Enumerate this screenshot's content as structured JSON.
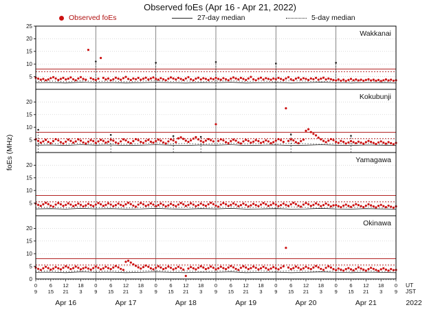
{
  "chart_data": {
    "type": "scatter",
    "title": "Observed foEs (Apr 16 - Apr 21, 2022)",
    "ylabel": "foEs (MHz)",
    "ylim": [
      0,
      25
    ],
    "yticks": [
      0,
      5,
      10,
      15,
      20,
      25
    ],
    "x_hours": [
      0,
      144
    ],
    "xtick_step_hours": 6,
    "observed_step_hours": 1,
    "median_step_hours": 6,
    "grid": true,
    "legend_position": "top",
    "legend": [
      {
        "label": "Observed foEs",
        "type": "dot",
        "color": "#cc1111"
      },
      {
        "label": "27-day median",
        "type": "solid-line",
        "color": "#222222"
      },
      {
        "label": "5-day median",
        "type": "dotted-line",
        "color": "#222222"
      }
    ],
    "x_days": [
      "Apr 16",
      "Apr 17",
      "Apr 18",
      "Apr 19",
      "Apr 20",
      "Apr 21"
    ],
    "year_label": "2022",
    "time_axis_labels": {
      "ut": "UT",
      "jst": "JST"
    },
    "ut_tick_start": 0,
    "jst_tick_start": 9,
    "colors": {
      "observed": "#cc1111",
      "median": "#1a1a1a",
      "threshold": "#b22222",
      "minor_grid": "#c4c4c4",
      "day_line": "#666666",
      "frame": "#000000"
    },
    "panels": [
      {
        "station": "Wakkanai",
        "red_solid": 8,
        "red_dotted": 7,
        "spikes": [
          [
            24,
            11.0
          ],
          [
            48,
            10.5
          ],
          [
            72,
            10.8
          ],
          [
            96,
            10.2
          ],
          [
            120,
            10.5
          ]
        ],
        "observed_y": [
          4.6,
          4.2,
          3.8,
          4.1,
          3.6,
          3.9,
          4.4,
          4.8,
          4.3,
          3.7,
          4.1,
          4.5,
          3.9,
          4.2,
          4.7,
          4.0,
          3.6,
          4.3,
          4.8,
          4.1,
          3.8,
          15.6,
          4.4,
          4.0,
          3.7,
          4.2,
          12.4,
          4.5,
          3.9,
          4.3,
          3.6,
          4.0,
          4.6,
          4.2,
          3.8,
          4.4,
          4.9,
          4.1,
          3.7,
          4.3,
          4.0,
          4.5,
          3.8,
          4.2,
          4.6,
          3.9,
          4.3,
          4.7,
          4.1,
          3.8,
          4.4,
          4.0,
          3.6,
          4.2,
          4.7,
          4.3,
          3.9,
          4.5,
          4.1,
          3.7,
          4.3,
          4.8,
          4.0,
          3.6,
          4.2,
          4.6,
          3.9,
          4.4,
          4.1,
          3.7,
          4.3,
          4.0,
          4.5,
          4.1,
          3.8,
          4.4,
          4.0,
          3.6,
          4.2,
          4.7,
          4.3,
          3.9,
          4.5,
          4.1,
          3.7,
          4.3,
          4.9,
          4.0,
          3.6,
          4.2,
          4.6,
          3.9,
          4.4,
          4.1,
          3.8,
          4.3,
          4.0,
          4.5,
          4.1,
          3.7,
          4.3,
          4.8,
          4.0,
          3.6,
          4.2,
          4.6,
          3.9,
          4.4,
          4.1,
          3.7,
          4.3,
          4.0,
          4.5,
          3.8,
          4.2,
          4.6,
          3.9,
          4.3,
          4.0,
          3.7,
          3.5,
          3.9,
          3.4,
          3.8,
          3.3,
          3.7,
          4.1,
          3.6,
          3.9,
          3.5,
          3.8,
          3.4,
          3.7,
          4.0,
          3.5,
          3.8,
          3.4,
          3.7,
          3.3,
          3.6,
          3.9,
          3.5,
          3.8,
          3.4,
          3.6
        ],
        "median27_y": [
          2.6,
          2.7,
          2.5,
          2.8,
          2.6,
          2.7,
          2.5,
          2.6,
          2.8,
          2.6,
          2.5,
          2.7,
          2.6,
          2.8,
          2.5,
          2.6,
          2.7,
          2.5,
          2.6,
          2.8,
          2.6,
          2.5,
          2.7,
          2.6,
          2.5
        ],
        "median5_y": [
          3.1,
          3.3,
          3.0,
          3.4,
          3.1,
          3.3,
          3.0,
          3.2,
          3.5,
          3.1,
          3.3,
          3.0,
          3.2,
          3.4,
          3.1,
          3.3,
          3.0,
          3.4,
          3.2,
          3.0,
          3.3,
          3.1,
          3.4,
          3.0,
          3.2
        ]
      },
      {
        "station": "Kokubunji",
        "red_solid": 8,
        "red_dotted": 5.5,
        "spikes": [
          [
            1,
            9.0
          ],
          [
            30,
            7.0
          ],
          [
            55,
            6.5
          ],
          [
            66,
            6.2
          ],
          [
            102,
            7.2
          ],
          [
            126,
            6.6
          ]
        ],
        "observed_y": [
          5.2,
          4.6,
          3.9,
          4.4,
          5.0,
          4.2,
          3.7,
          4.5,
          5.3,
          4.8,
          4.1,
          3.6,
          4.3,
          5.1,
          4.6,
          3.9,
          4.4,
          5.2,
          4.7,
          4.0,
          3.6,
          4.3,
          4.9,
          4.5,
          3.8,
          4.4,
          5.0,
          4.6,
          3.9,
          4.3,
          5.1,
          4.7,
          4.0,
          3.6,
          4.4,
          5.2,
          4.8,
          4.1,
          3.7,
          4.5,
          5.3,
          4.9,
          4.2,
          3.8,
          4.6,
          5.0,
          4.3,
          3.9,
          4.5,
          5.1,
          4.7,
          4.0,
          3.6,
          4.4,
          5.2,
          4.8,
          4.1,
          5.6,
          6.0,
          5.4,
          4.7,
          4.2,
          4.8,
          5.5,
          6.1,
          5.2,
          4.6,
          4.1,
          4.7,
          5.3,
          4.9,
          4.4,
          11.2,
          4.6,
          5.2,
          4.8,
          4.1,
          3.7,
          4.5,
          5.1,
          4.7,
          4.0,
          3.6,
          4.4,
          5.0,
          4.6,
          3.9,
          4.3,
          4.9,
          4.5,
          3.8,
          4.2,
          4.8,
          4.4,
          3.7,
          4.1,
          4.7,
          5.3,
          4.9,
          4.2,
          17.5,
          4.6,
          5.2,
          4.8,
          4.1,
          3.7,
          4.5,
          5.1,
          8.6,
          9.2,
          8.1,
          7.4,
          6.8,
          5.9,
          5.2,
          4.6,
          4.1,
          4.7,
          5.3,
          4.9,
          4.2,
          3.8,
          4.6,
          4.2,
          3.6,
          4.0,
          4.5,
          4.1,
          3.7,
          4.3,
          3.9,
          3.5,
          4.1,
          4.6,
          4.2,
          3.8,
          3.4,
          4.0,
          4.4,
          3.9,
          3.5,
          4.1,
          3.7,
          3.3,
          3.8
        ],
        "median27_y": [
          2.9,
          3.0,
          2.8,
          3.1,
          2.9,
          3.0,
          2.8,
          2.9,
          3.1,
          2.9,
          2.8,
          3.0,
          2.9,
          3.1,
          2.8,
          2.9,
          3.0,
          2.8,
          2.9,
          3.1,
          2.9,
          2.8,
          3.0,
          2.9,
          2.8
        ],
        "median5_y": [
          3.4,
          3.6,
          3.3,
          3.7,
          3.4,
          3.6,
          3.3,
          3.5,
          3.8,
          3.4,
          3.6,
          3.3,
          3.5,
          3.7,
          3.4,
          3.6,
          3.3,
          3.7,
          3.5,
          3.3,
          3.6,
          3.4,
          3.7,
          3.3,
          3.5
        ]
      },
      {
        "station": "Yamagawa",
        "red_solid": 8,
        "red_dotted": 5.5,
        "spikes": [],
        "observed_y": [
          4.8,
          4.3,
          3.9,
          4.5,
          5.1,
          4.6,
          4.0,
          3.6,
          4.4,
          5.0,
          4.5,
          3.9,
          4.3,
          4.9,
          4.4,
          3.8,
          4.2,
          4.8,
          4.3,
          3.7,
          4.1,
          4.7,
          4.2,
          3.8,
          4.4,
          5.0,
          4.5,
          3.9,
          4.3,
          4.9,
          4.4,
          3.8,
          4.2,
          4.8,
          4.3,
          3.9,
          4.5,
          5.1,
          4.6,
          4.0,
          3.6,
          4.4,
          5.0,
          4.5,
          3.9,
          4.3,
          4.9,
          4.4,
          3.8,
          4.2,
          4.8,
          4.3,
          3.7,
          4.1,
          4.7,
          4.2,
          3.8,
          4.4,
          5.0,
          4.5,
          3.9,
          4.3,
          4.9,
          4.4,
          3.8,
          4.2,
          4.8,
          4.3,
          3.9,
          4.5,
          5.1,
          4.6,
          4.0,
          3.6,
          4.4,
          5.0,
          4.5,
          3.9,
          4.3,
          4.9,
          4.4,
          3.8,
          4.2,
          4.8,
          4.3,
          3.7,
          4.1,
          4.7,
          4.2,
          3.8,
          4.4,
          5.0,
          4.5,
          3.9,
          4.3,
          4.9,
          4.4,
          3.8,
          4.2,
          4.8,
          4.3,
          3.9,
          4.5,
          5.1,
          4.6,
          4.0,
          3.6,
          4.4,
          5.0,
          4.5,
          3.9,
          4.3,
          4.9,
          4.4,
          3.8,
          4.2,
          4.8,
          4.3,
          3.7,
          4.1,
          4.2,
          3.8,
          3.4,
          4.0,
          4.4,
          3.9,
          3.5,
          4.1,
          4.6,
          4.2,
          3.8,
          3.4,
          4.0,
          4.5,
          4.1,
          3.7,
          3.3,
          3.9,
          4.3,
          3.8,
          3.4,
          4.0,
          3.6,
          3.2,
          3.7
        ],
        "median27_y": [
          2.7,
          2.8,
          2.6,
          2.9,
          2.7,
          2.8,
          2.6,
          2.7,
          2.9,
          2.7,
          2.6,
          2.8,
          2.7,
          2.9,
          2.6,
          2.7,
          2.8,
          2.6,
          2.7,
          2.9,
          2.7,
          2.6,
          2.8,
          2.7,
          2.6
        ],
        "median5_y": [
          3.2,
          3.4,
          3.1,
          3.5,
          3.2,
          3.4,
          3.1,
          3.3,
          3.6,
          3.2,
          3.4,
          3.1,
          3.3,
          3.5,
          3.2,
          3.4,
          3.1,
          3.5,
          3.3,
          3.1,
          3.4,
          3.2,
          3.5,
          3.1,
          3.3
        ]
      },
      {
        "station": "Okinawa",
        "red_solid": 8,
        "red_dotted": 5.5,
        "spikes": [],
        "observed_y": [
          4.5,
          4.0,
          3.6,
          4.2,
          4.8,
          4.3,
          3.7,
          4.1,
          4.7,
          4.2,
          3.8,
          4.4,
          5.0,
          4.5,
          3.9,
          4.3,
          4.9,
          4.4,
          3.8,
          4.2,
          4.6,
          4.1,
          3.7,
          4.3,
          4.9,
          4.4,
          3.8,
          4.2,
          4.8,
          4.3,
          3.9,
          4.5,
          5.1,
          4.6,
          4.0,
          3.6,
          6.8,
          7.2,
          6.5,
          5.8,
          5.2,
          4.6,
          4.1,
          4.7,
          5.3,
          4.8,
          4.2,
          3.8,
          4.4,
          5.0,
          4.5,
          3.9,
          4.3,
          4.9,
          4.4,
          3.8,
          4.2,
          4.8,
          4.3,
          3.7,
          1.2,
          4.1,
          4.7,
          4.2,
          3.8,
          4.4,
          5.0,
          4.5,
          3.9,
          4.3,
          4.9,
          4.4,
          3.8,
          4.2,
          4.8,
          4.3,
          3.9,
          4.5,
          5.1,
          4.6,
          4.0,
          3.6,
          4.4,
          5.0,
          4.5,
          3.9,
          4.3,
          4.9,
          4.4,
          3.8,
          4.2,
          4.8,
          4.3,
          3.7,
          4.1,
          4.7,
          4.2,
          3.8,
          4.4,
          5.0,
          12.3,
          4.5,
          3.9,
          4.3,
          4.9,
          4.4,
          3.8,
          4.2,
          4.8,
          4.3,
          3.9,
          4.5,
          5.1,
          4.6,
          4.0,
          3.6,
          4.4,
          5.0,
          4.5,
          3.9,
          3.5,
          4.1,
          3.7,
          3.3,
          3.9,
          4.3,
          3.8,
          3.4,
          4.0,
          4.6,
          4.1,
          3.7,
          3.3,
          3.9,
          4.4,
          4.0,
          3.6,
          3.2,
          3.8,
          4.2,
          3.7,
          3.3,
          3.9,
          3.5,
          3.6
        ],
        "median27_y": [
          2.6,
          2.7,
          2.5,
          2.8,
          2.6,
          2.7,
          2.5,
          2.6,
          2.8,
          2.6,
          2.5,
          2.7,
          2.6,
          2.8,
          2.5,
          2.6,
          2.7,
          2.5,
          2.6,
          2.8,
          2.6,
          2.5,
          2.7,
          2.6,
          2.5
        ],
        "median5_y": [
          3.0,
          3.2,
          2.9,
          3.3,
          3.0,
          3.2,
          2.9,
          3.1,
          3.4,
          3.0,
          3.2,
          2.9,
          3.1,
          3.3,
          3.0,
          3.2,
          2.9,
          3.3,
          3.1,
          2.9,
          3.2,
          3.0,
          3.3,
          2.9,
          3.1
        ]
      }
    ]
  }
}
